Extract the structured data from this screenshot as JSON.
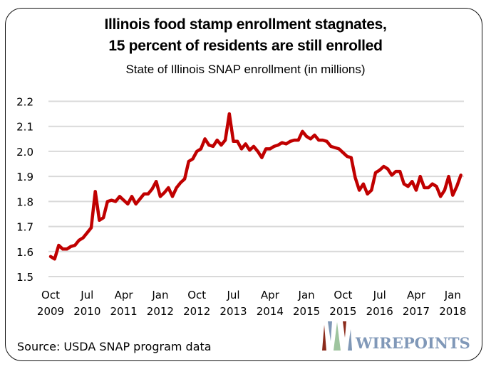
{
  "chart_data": {
    "type": "line",
    "title": "Illinois food stamp enrollment stagnates,",
    "title_line2": "15 percent of residents are still enrolled",
    "subtitle": "State of Illinois SNAP enrollment (in millions)",
    "xlabel": "",
    "ylabel": "",
    "ylim": [
      1.5,
      2.2
    ],
    "yticks": [
      "1.5",
      "1.6",
      "1.7",
      "1.8",
      "1.9",
      "2.0",
      "2.1",
      "2.2"
    ],
    "ytick_values": [
      1.5,
      1.6,
      1.7,
      1.8,
      1.9,
      2.0,
      2.1,
      2.2
    ],
    "xticks": [
      {
        "month": "Oct",
        "year": "2009",
        "index": 0
      },
      {
        "month": "Jul",
        "year": "2010",
        "index": 9
      },
      {
        "month": "Apr",
        "year": "2011",
        "index": 18
      },
      {
        "month": "Jan",
        "year": "2012",
        "index": 27
      },
      {
        "month": "Oct",
        "year": "2012",
        "index": 36
      },
      {
        "month": "Jul",
        "year": "2013",
        "index": 45
      },
      {
        "month": "Apr",
        "year": "2014",
        "index": 54
      },
      {
        "month": "Jan",
        "year": "2015",
        "index": 63
      },
      {
        "month": "Oct",
        "year": "2015",
        "index": 72
      },
      {
        "month": "Jul",
        "year": "2016",
        "index": 81
      },
      {
        "month": "Apr",
        "year": "2017",
        "index": 90
      },
      {
        "month": "Jan",
        "year": "2018",
        "index": 99
      }
    ],
    "grid": true,
    "legend": "none",
    "series": [
      {
        "name": "Illinois SNAP enrollment (millions)",
        "color": "#c00000",
        "start": "Oct 2009",
        "end": "Mar 2018",
        "values": [
          1.58,
          1.57,
          1.625,
          1.61,
          1.61,
          1.62,
          1.625,
          1.645,
          1.655,
          1.675,
          1.695,
          1.84,
          1.725,
          1.735,
          1.8,
          1.805,
          1.8,
          1.82,
          1.805,
          1.79,
          1.82,
          1.79,
          1.81,
          1.83,
          1.83,
          1.85,
          1.88,
          1.82,
          1.835,
          1.855,
          1.82,
          1.855,
          1.875,
          1.89,
          1.96,
          1.97,
          2.0,
          2.01,
          2.05,
          2.025,
          2.02,
          2.045,
          2.025,
          2.045,
          2.15,
          2.04,
          2.04,
          2.01,
          2.03,
          2.005,
          2.02,
          2.0,
          1.975,
          2.01,
          2.01,
          2.02,
          2.025,
          2.035,
          2.03,
          2.04,
          2.045,
          2.045,
          2.08,
          2.06,
          2.05,
          2.065,
          2.045,
          2.045,
          2.04,
          2.02,
          2.015,
          2.01,
          1.995,
          1.98,
          1.975,
          1.895,
          1.845,
          1.87,
          1.83,
          1.845,
          1.915,
          1.925,
          1.94,
          1.93,
          1.905,
          1.92,
          1.92,
          1.87,
          1.86,
          1.88,
          1.845,
          1.9,
          1.855,
          1.855,
          1.87,
          1.86,
          1.82,
          1.845,
          1.9,
          1.825,
          1.86,
          1.905
        ]
      }
    ]
  },
  "footer": {
    "source": "Source: USDA SNAP program data",
    "logo_text": "WIREPOINTS"
  },
  "colors": {
    "line": "#c00000",
    "grid": "#d9d9d9",
    "logo_text": "#8098b8"
  }
}
